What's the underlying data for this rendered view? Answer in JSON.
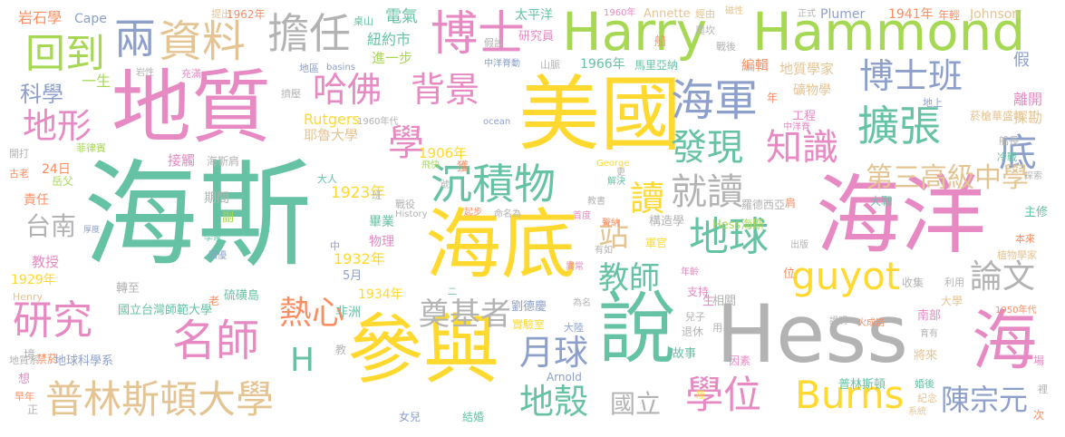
{
  "palette": {
    "green": "#66c2a5",
    "orange": "#fc8d62",
    "blue": "#8da0cb",
    "pink": "#e78ac3",
    "lime": "#a6d854",
    "yellow": "#ffd92f",
    "tan": "#e5c494",
    "gray": "#b3b3b3"
  },
  "words": [
    {
      "text": "海斯",
      "color": "green"
    },
    {
      "text": "海洋",
      "color": "pink"
    },
    {
      "text": "美國",
      "color": "yellow"
    },
    {
      "text": "地質",
      "color": "pink"
    },
    {
      "text": "Hess",
      "color": "gray"
    },
    {
      "text": "海底",
      "color": "yellow"
    },
    {
      "text": "參與",
      "color": "yellow"
    },
    {
      "text": "說",
      "color": "green"
    },
    {
      "text": "Harry",
      "color": "lime"
    },
    {
      "text": "Hammond",
      "color": "lime"
    },
    {
      "text": "海",
      "color": "pink"
    },
    {
      "text": "博士",
      "color": "pink"
    },
    {
      "text": "資料",
      "color": "tan"
    },
    {
      "text": "擔任",
      "color": "gray"
    },
    {
      "text": "海軍",
      "color": "blue"
    },
    {
      "text": "博士班",
      "color": "blue"
    },
    {
      "text": "回到",
      "color": "lime"
    },
    {
      "text": "兩",
      "color": "blue"
    },
    {
      "text": "哈佛",
      "color": "pink"
    },
    {
      "text": "背景",
      "color": "pink"
    },
    {
      "text": "擴張",
      "color": "green"
    },
    {
      "text": "沉積物",
      "color": "green"
    },
    {
      "text": "地形",
      "color": "pink"
    },
    {
      "text": "學",
      "color": "pink"
    },
    {
      "text": "發現",
      "color": "green"
    },
    {
      "text": "知識",
      "color": "pink"
    },
    {
      "text": "底",
      "color": "blue"
    },
    {
      "text": "第三高級中學",
      "color": "tan"
    },
    {
      "text": "讀",
      "color": "yellow"
    },
    {
      "text": "就讀",
      "color": "gray"
    },
    {
      "text": "站",
      "color": "tan"
    },
    {
      "text": "地球",
      "color": "green"
    },
    {
      "text": "論文",
      "color": "gray"
    },
    {
      "text": "guyot",
      "color": "yellow"
    },
    {
      "text": "研究",
      "color": "pink"
    },
    {
      "text": "名師",
      "color": "pink"
    },
    {
      "text": "熱心",
      "color": "orange"
    },
    {
      "text": "教師",
      "color": "green"
    },
    {
      "text": "奠基者",
      "color": "gray"
    },
    {
      "text": "月球",
      "color": "blue"
    },
    {
      "text": "普林斯頓大學",
      "color": "tan"
    },
    {
      "text": "學位",
      "color": "pink"
    },
    {
      "text": "Burns",
      "color": "yellow"
    },
    {
      "text": "陳宗元",
      "color": "blue"
    },
    {
      "text": "地殼",
      "color": "green"
    },
    {
      "text": "國立",
      "color": "gray"
    },
    {
      "text": "台南",
      "color": "gray"
    },
    {
      "text": "H",
      "color": "green"
    },
    {
      "text": "科學",
      "color": "blue"
    },
    {
      "text": "岩石學",
      "color": "orange"
    },
    {
      "text": "Cape",
      "color": "blue"
    },
    {
      "text": "提出",
      "color": "tan"
    },
    {
      "text": "1962年",
      "color": "orange"
    },
    {
      "text": "太平洋",
      "color": "green"
    },
    {
      "text": "1960年",
      "color": "pink"
    },
    {
      "text": "Annette",
      "color": "tan"
    },
    {
      "text": "經由",
      "color": "tan"
    },
    {
      "text": "磁性",
      "color": "tan"
    },
    {
      "text": "正式",
      "color": "gray"
    },
    {
      "text": "Plumer",
      "color": "blue"
    },
    {
      "text": "1941年",
      "color": "orange"
    },
    {
      "text": "年輕",
      "color": "orange"
    },
    {
      "text": "Johnson",
      "color": "tan"
    },
    {
      "text": "電氣",
      "color": "green"
    },
    {
      "text": "桌山",
      "color": "green"
    },
    {
      "text": "紐約市",
      "color": "green"
    },
    {
      "text": "研究員",
      "color": "pink"
    },
    {
      "text": "奧坎",
      "color": "gray"
    },
    {
      "text": "假設",
      "color": "gray"
    },
    {
      "text": "進一步",
      "color": "lime"
    },
    {
      "text": "1966年",
      "color": "green"
    },
    {
      "text": "馬里亞納",
      "color": "green"
    },
    {
      "text": "編輯",
      "color": "orange"
    },
    {
      "text": "地質學家",
      "color": "tan"
    },
    {
      "text": "假",
      "color": "blue"
    },
    {
      "text": "離開",
      "color": "pink"
    },
    {
      "text": "礦物學",
      "color": "tan"
    },
    {
      "text": "探勘",
      "color": "tan"
    },
    {
      "text": "一生",
      "color": "lime"
    },
    {
      "text": "Rutgers",
      "color": "yellow"
    },
    {
      "text": "耶魯大學",
      "color": "tan"
    },
    {
      "text": "1906年",
      "color": "yellow"
    },
    {
      "text": "1923年",
      "color": "yellow"
    },
    {
      "text": "1932年",
      "color": "yellow"
    },
    {
      "text": "1934年",
      "color": "yellow"
    },
    {
      "text": "1929年",
      "color": "yellow"
    },
    {
      "text": "5月",
      "color": "blue"
    },
    {
      "text": "24日",
      "color": "orange"
    },
    {
      "text": "接觸",
      "color": "pink"
    },
    {
      "text": "海斯肩",
      "color": "gray"
    },
    {
      "text": "菲律賓",
      "color": "lime"
    },
    {
      "text": "期間",
      "color": "gray"
    },
    {
      "text": "責任",
      "color": "orange"
    },
    {
      "text": "岳父",
      "color": "lime"
    },
    {
      "text": "副",
      "color": "lime"
    },
    {
      "text": "教授",
      "color": "pink"
    },
    {
      "text": "畢業",
      "color": "green"
    },
    {
      "text": "物理",
      "color": "pink"
    },
    {
      "text": "非洲",
      "color": "green"
    },
    {
      "text": "轉至",
      "color": "gray"
    },
    {
      "text": "硫磺島",
      "color": "green"
    },
    {
      "text": "國立台灣師範大學",
      "color": "green"
    },
    {
      "text": "禁菸",
      "color": "orange"
    },
    {
      "text": "地球科學系",
      "color": "blue"
    },
    {
      "text": "構造學",
      "color": "gray"
    },
    {
      "text": "Hess海斯",
      "color": "lime"
    },
    {
      "text": "劉德慶",
      "color": "blue"
    },
    {
      "text": "實驗室",
      "color": "yellow"
    },
    {
      "text": "大陸",
      "color": "blue"
    },
    {
      "text": "相關",
      "color": "gray"
    },
    {
      "text": "大學",
      "color": "tan"
    },
    {
      "text": "南部",
      "color": "pink"
    },
    {
      "text": "主修",
      "color": "green"
    },
    {
      "text": "本來",
      "color": "orange"
    },
    {
      "text": "植物學家",
      "color": "tan"
    },
    {
      "text": "將來",
      "color": "tan"
    },
    {
      "text": "故事",
      "color": "green"
    },
    {
      "text": "退休",
      "color": "gray"
    },
    {
      "text": "普林斯頓",
      "color": "green"
    },
    {
      "text": "婚後",
      "color": "green"
    },
    {
      "text": "紀念",
      "color": "tan"
    },
    {
      "text": "結婚",
      "color": "green"
    },
    {
      "text": "女兒",
      "color": "blue"
    },
    {
      "text": "Arnold",
      "color": "blue"
    },
    {
      "text": "因素",
      "color": "pink"
    },
    {
      "text": "工程",
      "color": "pink"
    },
    {
      "text": "菸槍",
      "color": "tan"
    },
    {
      "text": "華盛頓",
      "color": "tan"
    },
    {
      "text": "船長",
      "color": "gray"
    },
    {
      "text": "冷戰",
      "color": "green"
    },
    {
      "text": "羅德西亞",
      "color": "gray"
    },
    {
      "text": "大戰",
      "color": "green"
    },
    {
      "text": "George",
      "color": "yellow"
    },
    {
      "text": "飛快",
      "color": "lime"
    },
    {
      "text": "獲",
      "color": "orange"
    },
    {
      "text": "大人",
      "color": "green"
    },
    {
      "text": "號",
      "color": "gray"
    },
    {
      "text": "班",
      "color": "gray"
    },
    {
      "text": "戰役",
      "color": "gray"
    },
    {
      "text": "起步",
      "color": "orange"
    },
    {
      "text": "命名為",
      "color": "gray"
    },
    {
      "text": "首度",
      "color": "pink"
    },
    {
      "text": "聲納",
      "color": "orange"
    },
    {
      "text": "教書",
      "color": "gray"
    },
    {
      "text": "解決",
      "color": "green"
    },
    {
      "text": "更",
      "color": "gray"
    },
    {
      "text": "肩",
      "color": "orange"
    },
    {
      "text": "軍官",
      "color": "yellow"
    },
    {
      "text": "有如",
      "color": "gray"
    },
    {
      "text": "異常",
      "color": "pink"
    },
    {
      "text": "為名",
      "color": "gray"
    },
    {
      "text": "年齡",
      "color": "pink"
    },
    {
      "text": "支持",
      "color": "pink"
    },
    {
      "text": "位",
      "color": "orange"
    },
    {
      "text": "生",
      "color": "pink"
    },
    {
      "text": "兒子",
      "color": "gray"
    },
    {
      "text": "用以",
      "color": "gray"
    },
    {
      "text": "證明",
      "color": "gray"
    },
    {
      "text": "火成岩",
      "color": "orange"
    },
    {
      "text": "育有",
      "color": "gray"
    },
    {
      "text": "收集",
      "color": "gray"
    },
    {
      "text": "利用",
      "color": "gray"
    },
    {
      "text": "1950年代",
      "color": "orange"
    },
    {
      "text": "出版",
      "color": "gray"
    },
    {
      "text": "中洋脊",
      "color": "pink"
    },
    {
      "text": "地上",
      "color": "blue"
    },
    {
      "text": "年",
      "color": "orange"
    },
    {
      "text": "船",
      "color": "orange"
    },
    {
      "text": "戰後",
      "color": "gray"
    },
    {
      "text": "中洋脊動",
      "color": "blue"
    },
    {
      "text": "山脈",
      "color": "gray"
    },
    {
      "text": "地區",
      "color": "blue"
    },
    {
      "text": "basins",
      "color": "blue"
    },
    {
      "text": "充滿",
      "color": "pink"
    },
    {
      "text": "岩性",
      "color": "gray"
    },
    {
      "text": "擠壓",
      "color": "gray"
    },
    {
      "text": "1960年代",
      "color": "gray"
    },
    {
      "text": "ocean",
      "color": "blue"
    },
    {
      "text": "History",
      "color": "gray"
    },
    {
      "text": "開打",
      "color": "gray"
    },
    {
      "text": "古老",
      "color": "orange"
    },
    {
      "text": "厚度",
      "color": "blue"
    },
    {
      "text": "學家",
      "color": "green"
    },
    {
      "text": "中",
      "color": "blue"
    },
    {
      "text": "因優",
      "color": "blue"
    },
    {
      "text": "二",
      "color": "green"
    },
    {
      "text": "教",
      "color": "gray"
    },
    {
      "text": "老",
      "color": "orange"
    },
    {
      "text": "境",
      "color": "gray"
    },
    {
      "text": "Henry",
      "color": "tan"
    },
    {
      "text": "想",
      "color": "pink"
    },
    {
      "text": "早年",
      "color": "orange"
    },
    {
      "text": "正",
      "color": "gray"
    },
    {
      "text": "地質系",
      "color": "gray"
    },
    {
      "text": "陸",
      "color": "yellow"
    },
    {
      "text": "場",
      "color": "pink"
    },
    {
      "text": "裡",
      "color": "gray"
    },
    {
      "text": "系統",
      "color": "tan"
    },
    {
      "text": "次",
      "color": "orange"
    },
    {
      "text": "探索",
      "color": "gray"
    }
  ]
}
